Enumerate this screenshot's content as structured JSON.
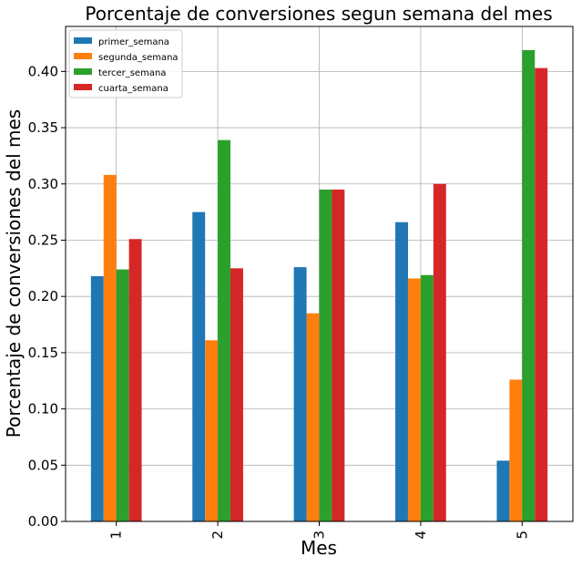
{
  "chart_data": {
    "type": "bar",
    "title": "Porcentaje de conversiones segun semana del mes",
    "xlabel": "Mes",
    "ylabel": "Porcentaje de conversiones del mes",
    "categories": [
      "1",
      "2",
      "3",
      "4",
      "5"
    ],
    "ylim": [
      0,
      0.44
    ],
    "yticks": [
      0.0,
      0.05,
      0.1,
      0.15,
      0.2,
      0.25,
      0.3,
      0.35,
      0.4
    ],
    "ytick_labels": [
      "0.00",
      "0.05",
      "0.10",
      "0.15",
      "0.20",
      "0.25",
      "0.30",
      "0.35",
      "0.40"
    ],
    "grid": true,
    "legend_position": "top-left",
    "series": [
      {
        "name": "primer_semana",
        "color": "#1f77b4",
        "values": [
          0.218,
          0.275,
          0.226,
          0.266,
          0.054
        ]
      },
      {
        "name": "segunda_semana",
        "color": "#ff7f0e",
        "values": [
          0.308,
          0.161,
          0.185,
          0.216,
          0.126
        ]
      },
      {
        "name": "tercer_semana",
        "color": "#2ca02c",
        "values": [
          0.224,
          0.339,
          0.295,
          0.219,
          0.419
        ]
      },
      {
        "name": "cuarta_semana",
        "color": "#d62728",
        "values": [
          0.251,
          0.225,
          0.295,
          0.3,
          0.403
        ]
      }
    ]
  }
}
